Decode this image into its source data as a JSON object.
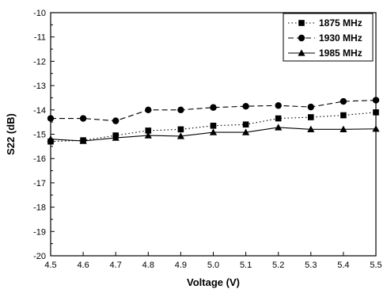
{
  "chart_data": {
    "type": "line",
    "xlabel": "Voltage (V)",
    "ylabel": "S22 (dB)",
    "xlim": [
      4.5,
      5.5
    ],
    "ylim": [
      -20,
      -10
    ],
    "x_ticks": [
      "4.5",
      "4.6",
      "4.7",
      "4.8",
      "4.9",
      "5.0",
      "5.1",
      "5.2",
      "5.3",
      "5.4",
      "5.5"
    ],
    "y_ticks": [
      "-10",
      "-11",
      "-12",
      "-13",
      "-14",
      "-15",
      "-16",
      "-17",
      "-18",
      "-19",
      "-20"
    ],
    "grid": false,
    "legend_position": "top-right",
    "x": [
      4.5,
      4.6,
      4.7,
      4.8,
      4.9,
      5.0,
      5.1,
      5.2,
      5.3,
      5.4,
      5.5
    ],
    "series": [
      {
        "name": "1875 MHz",
        "marker": "square",
        "line_style": "dotted",
        "values": [
          -15.3,
          -15.25,
          -15.05,
          -14.85,
          -14.8,
          -14.65,
          -14.6,
          -14.35,
          -14.3,
          -14.22,
          -14.1
        ]
      },
      {
        "name": "1930 MHz",
        "marker": "circle",
        "line_style": "dashed",
        "values": [
          -14.35,
          -14.35,
          -14.45,
          -14.0,
          -14.0,
          -13.9,
          -13.85,
          -13.82,
          -13.88,
          -13.65,
          -13.6
        ]
      },
      {
        "name": "1985 MHz",
        "marker": "triangle",
        "line_style": "solid",
        "values": [
          -15.2,
          -15.28,
          -15.15,
          -15.05,
          -15.08,
          -14.92,
          -14.92,
          -14.72,
          -14.8,
          -14.8,
          -14.78
        ]
      }
    ]
  }
}
